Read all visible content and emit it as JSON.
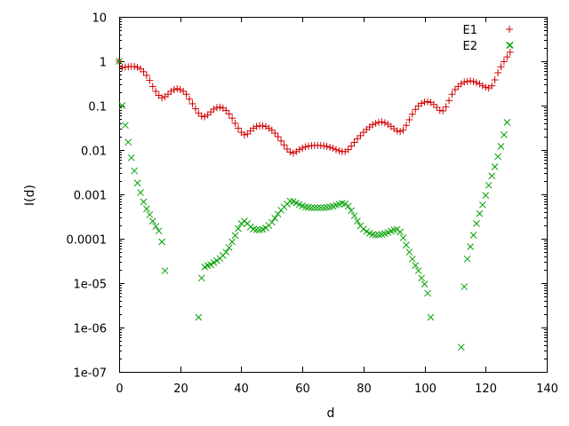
{
  "chart_data": {
    "type": "scatter",
    "title": "",
    "xlabel": "d",
    "ylabel": "I(d)",
    "xlim": [
      0,
      140
    ],
    "ylim": [
      1e-07,
      10
    ],
    "yscale": "log",
    "grid": false,
    "legend_position": "top-right",
    "x_ticks": [
      "0",
      "20",
      "40",
      "60",
      "80",
      "100",
      "120",
      "140"
    ],
    "y_ticks": [
      "1e-07",
      "1e-06",
      "1e-05",
      "0.0001",
      "0.001",
      "0.01",
      "0.1",
      "1",
      "10"
    ],
    "series": [
      {
        "name": "E1",
        "marker": "plus",
        "color": "#d00000",
        "points": [
          [
            0,
            1.0
          ],
          [
            1,
            0.72
          ],
          [
            2,
            0.74
          ],
          [
            3,
            0.75
          ],
          [
            4,
            0.76
          ],
          [
            5,
            0.76
          ],
          [
            6,
            0.73
          ],
          [
            7,
            0.67
          ],
          [
            8,
            0.58
          ],
          [
            9,
            0.48
          ],
          [
            10,
            0.37
          ],
          [
            11,
            0.27
          ],
          [
            12,
            0.21
          ],
          [
            13,
            0.17
          ],
          [
            14,
            0.15
          ],
          [
            15,
            0.16
          ],
          [
            16,
            0.18
          ],
          [
            17,
            0.21
          ],
          [
            18,
            0.23
          ],
          [
            19,
            0.24
          ],
          [
            20,
            0.23
          ],
          [
            21,
            0.21
          ],
          [
            22,
            0.18
          ],
          [
            23,
            0.14
          ],
          [
            24,
            0.11
          ],
          [
            25,
            0.085
          ],
          [
            26,
            0.068
          ],
          [
            27,
            0.058
          ],
          [
            28,
            0.056
          ],
          [
            29,
            0.062
          ],
          [
            30,
            0.072
          ],
          [
            31,
            0.083
          ],
          [
            32,
            0.09
          ],
          [
            33,
            0.092
          ],
          [
            34,
            0.088
          ],
          [
            35,
            0.078
          ],
          [
            36,
            0.065
          ],
          [
            37,
            0.052
          ],
          [
            38,
            0.04
          ],
          [
            39,
            0.031
          ],
          [
            40,
            0.025
          ],
          [
            41,
            0.022
          ],
          [
            42,
            0.023
          ],
          [
            43,
            0.027
          ],
          [
            44,
            0.031
          ],
          [
            45,
            0.034
          ],
          [
            46,
            0.035
          ],
          [
            47,
            0.035
          ],
          [
            48,
            0.034
          ],
          [
            49,
            0.031
          ],
          [
            50,
            0.028
          ],
          [
            51,
            0.024
          ],
          [
            52,
            0.02
          ],
          [
            53,
            0.016
          ],
          [
            54,
            0.013
          ],
          [
            55,
            0.0105
          ],
          [
            56,
            0.009
          ],
          [
            57,
            0.0085
          ],
          [
            58,
            0.0092
          ],
          [
            59,
            0.0102
          ],
          [
            60,
            0.011
          ],
          [
            61,
            0.0118
          ],
          [
            62,
            0.0122
          ],
          [
            63,
            0.0125
          ],
          [
            64,
            0.0127
          ],
          [
            65,
            0.0127
          ],
          [
            66,
            0.0126
          ],
          [
            67,
            0.0124
          ],
          [
            68,
            0.012
          ],
          [
            69,
            0.0115
          ],
          [
            70,
            0.0109
          ],
          [
            71,
            0.0102
          ],
          [
            72,
            0.0096
          ],
          [
            73,
            0.0092
          ],
          [
            74,
            0.0092
          ],
          [
            75,
            0.0102
          ],
          [
            76,
            0.0122
          ],
          [
            77,
            0.0148
          ],
          [
            78,
            0.018
          ],
          [
            79,
            0.021
          ],
          [
            80,
            0.025
          ],
          [
            81,
            0.029
          ],
          [
            82,
            0.033
          ],
          [
            83,
            0.037
          ],
          [
            84,
            0.04
          ],
          [
            85,
            0.042
          ],
          [
            86,
            0.043
          ],
          [
            87,
            0.041
          ],
          [
            88,
            0.038
          ],
          [
            89,
            0.034
          ],
          [
            90,
            0.03
          ],
          [
            91,
            0.027
          ],
          [
            92,
            0.026
          ],
          [
            93,
            0.028
          ],
          [
            94,
            0.036
          ],
          [
            95,
            0.048
          ],
          [
            96,
            0.064
          ],
          [
            97,
            0.082
          ],
          [
            98,
            0.099
          ],
          [
            99,
            0.112
          ],
          [
            100,
            0.12
          ],
          [
            101,
            0.123
          ],
          [
            102,
            0.118
          ],
          [
            103,
            0.106
          ],
          [
            104,
            0.091
          ],
          [
            105,
            0.078
          ],
          [
            106,
            0.076
          ],
          [
            107,
            0.094
          ],
          [
            108,
            0.13
          ],
          [
            109,
            0.18
          ],
          [
            110,
            0.23
          ],
          [
            111,
            0.27
          ],
          [
            112,
            0.31
          ],
          [
            113,
            0.34
          ],
          [
            114,
            0.35
          ],
          [
            115,
            0.36
          ],
          [
            116,
            0.35
          ],
          [
            117,
            0.33
          ],
          [
            118,
            0.31
          ],
          [
            119,
            0.28
          ],
          [
            120,
            0.26
          ],
          [
            121,
            0.25
          ],
          [
            122,
            0.28
          ],
          [
            123,
            0.38
          ],
          [
            124,
            0.55
          ],
          [
            125,
            0.75
          ],
          [
            126,
            0.98
          ],
          [
            127,
            1.25
          ],
          [
            128,
            1.6
          ]
        ]
      },
      {
        "name": "E2",
        "marker": "cross",
        "color": "#00a000",
        "points": [
          [
            0,
            1.0
          ],
          [
            1,
            0.1
          ],
          [
            2,
            0.036
          ],
          [
            3,
            0.015
          ],
          [
            4,
            0.0067
          ],
          [
            5,
            0.0034
          ],
          [
            6,
            0.0018
          ],
          [
            7,
            0.0011
          ],
          [
            8,
            0.00068
          ],
          [
            9,
            0.00047
          ],
          [
            10,
            0.00035
          ],
          [
            11,
            0.00025
          ],
          [
            12,
            0.00019
          ],
          [
            13,
            0.00015
          ],
          [
            14,
            8.5e-05
          ],
          [
            15,
            1.9e-05
          ],
          [
            26,
            1.7e-06
          ],
          [
            27,
            1.3e-05
          ],
          [
            28,
            2.3e-05
          ],
          [
            29,
            2.5e-05
          ],
          [
            30,
            2.6e-05
          ],
          [
            31,
            2.9e-05
          ],
          [
            32,
            3.2e-05
          ],
          [
            33,
            3.6e-05
          ],
          [
            34,
            4.2e-05
          ],
          [
            35,
            5e-05
          ],
          [
            36,
            6.3e-05
          ],
          [
            37,
            8.5e-05
          ],
          [
            38,
            0.000118
          ],
          [
            39,
            0.00017
          ],
          [
            40,
            0.00022
          ],
          [
            41,
            0.00025
          ],
          [
            42,
            0.00022
          ],
          [
            43,
            0.000185
          ],
          [
            44,
            0.000165
          ],
          [
            45,
            0.00016
          ],
          [
            46,
            0.000158
          ],
          [
            47,
            0.000162
          ],
          [
            48,
            0.000175
          ],
          [
            49,
            0.0002
          ],
          [
            50,
            0.000235
          ],
          [
            51,
            0.00029
          ],
          [
            52,
            0.00036
          ],
          [
            53,
            0.00044
          ],
          [
            54,
            0.00052
          ],
          [
            55,
            0.00061
          ],
          [
            56,
            0.0007
          ],
          [
            57,
            0.00069
          ],
          [
            58,
            0.00064
          ],
          [
            59,
            0.00059
          ],
          [
            60,
            0.00055
          ],
          [
            61,
            0.00052
          ],
          [
            62,
            0.00051
          ],
          [
            63,
            0.0005
          ],
          [
            64,
            0.0005
          ],
          [
            65,
            0.0005
          ],
          [
            66,
            0.0005
          ],
          [
            67,
            0.0005
          ],
          [
            68,
            0.00051
          ],
          [
            69,
            0.00052
          ],
          [
            70,
            0.00054
          ],
          [
            71,
            0.00057
          ],
          [
            72,
            0.0006
          ],
          [
            73,
            0.00063
          ],
          [
            74,
            0.00061
          ],
          [
            75,
            0.00054
          ],
          [
            76,
            0.00043
          ],
          [
            77,
            0.00033
          ],
          [
            78,
            0.00025
          ],
          [
            79,
            0.000195
          ],
          [
            80,
            0.000165
          ],
          [
            81,
            0.000145
          ],
          [
            82,
            0.000133
          ],
          [
            83,
            0.000125
          ],
          [
            84,
            0.000122
          ],
          [
            85,
            0.000122
          ],
          [
            86,
            0.000125
          ],
          [
            87,
            0.00013
          ],
          [
            88,
            0.000138
          ],
          [
            89,
            0.000148
          ],
          [
            90,
            0.000158
          ],
          [
            91,
            0.000162
          ],
          [
            92,
            0.000142
          ],
          [
            93,
            0.000105
          ],
          [
            94,
            7.2e-05
          ],
          [
            95,
            5e-05
          ],
          [
            96,
            3.5e-05
          ],
          [
            97,
            2.5e-05
          ],
          [
            98,
            1.9e-05
          ],
          [
            99,
            1.3e-05
          ],
          [
            100,
            9.5e-06
          ],
          [
            101,
            5.9e-06
          ],
          [
            102,
            1.7e-06
          ],
          [
            112,
            3.6e-07
          ],
          [
            113,
            8.3e-06
          ],
          [
            114,
            3.5e-05
          ],
          [
            115,
            6.6e-05
          ],
          [
            116,
            0.00012
          ],
          [
            117,
            0.00022
          ],
          [
            118,
            0.00037
          ],
          [
            119,
            0.00058
          ],
          [
            120,
            0.00095
          ],
          [
            121,
            0.0016
          ],
          [
            122,
            0.0026
          ],
          [
            123,
            0.0042
          ],
          [
            124,
            0.0071
          ],
          [
            125,
            0.012
          ],
          [
            126,
            0.022
          ],
          [
            127,
            0.042
          ],
          [
            128,
            2.3
          ]
        ]
      }
    ]
  }
}
